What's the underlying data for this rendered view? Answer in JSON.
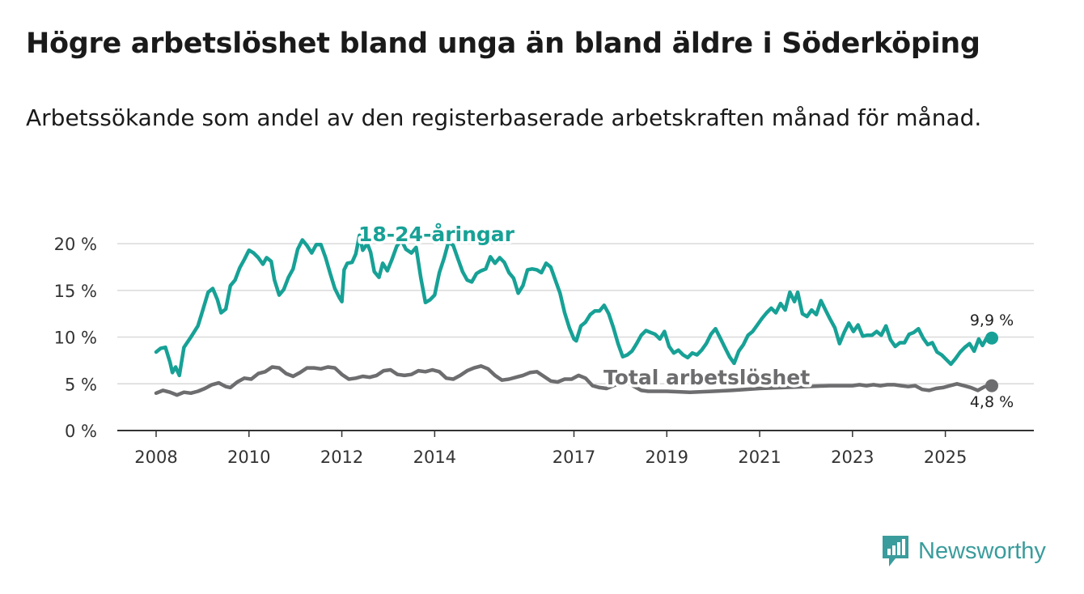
{
  "header": {
    "title": "Högre arbetslöshet bland unga än bland äldre i Söderköping",
    "subtitle": "Arbetssökande som andel av den registerbaserade arbetskraften månad för månad."
  },
  "brand": {
    "name": "Newsworthy",
    "color": "#3a9c9c"
  },
  "chart_data": {
    "type": "line",
    "title": "Högre arbetslöshet bland unga än bland äldre i Söderköping",
    "subtitle": "Arbetssökande som andel av den registerbaserade arbetskraften månad för månad.",
    "xlabel": "",
    "ylabel": "",
    "x_range": [
      2008,
      2026
    ],
    "ylim": [
      0,
      22
    ],
    "y_ticks": [
      0,
      5,
      10,
      15,
      20
    ],
    "y_tick_labels": [
      "0 %",
      "5 %",
      "10 %",
      "15 %",
      "20 %"
    ],
    "x_ticks": [
      2008,
      2010,
      2012,
      2014,
      2017,
      2019,
      2021,
      2023,
      2025
    ],
    "grid": true,
    "series": [
      {
        "name": "18-24-åringar",
        "color": "#17a196",
        "end_label": "9,9 %",
        "points": [
          [
            2008.0,
            8.4
          ],
          [
            2008.1,
            8.8
          ],
          [
            2008.2,
            8.9
          ],
          [
            2008.3,
            7.3
          ],
          [
            2008.35,
            6.2
          ],
          [
            2008.42,
            6.8
          ],
          [
            2008.5,
            5.9
          ],
          [
            2008.6,
            8.9
          ],
          [
            2008.75,
            10.0
          ],
          [
            2008.9,
            11.2
          ],
          [
            2009.0,
            12.8
          ],
          [
            2009.12,
            14.8
          ],
          [
            2009.22,
            15.2
          ],
          [
            2009.32,
            14.0
          ],
          [
            2009.4,
            12.6
          ],
          [
            2009.5,
            13.0
          ],
          [
            2009.6,
            15.5
          ],
          [
            2009.7,
            16.1
          ],
          [
            2009.8,
            17.4
          ],
          [
            2009.9,
            18.3
          ],
          [
            2010.0,
            19.3
          ],
          [
            2010.1,
            19.0
          ],
          [
            2010.2,
            18.5
          ],
          [
            2010.3,
            17.8
          ],
          [
            2010.38,
            18.5
          ],
          [
            2010.48,
            18.1
          ],
          [
            2010.55,
            16.1
          ],
          [
            2010.65,
            14.5
          ],
          [
            2010.75,
            15.1
          ],
          [
            2010.85,
            16.4
          ],
          [
            2010.95,
            17.3
          ],
          [
            2011.05,
            19.4
          ],
          [
            2011.15,
            20.4
          ],
          [
            2011.25,
            19.8
          ],
          [
            2011.35,
            19.0
          ],
          [
            2011.45,
            19.9
          ],
          [
            2011.55,
            19.9
          ],
          [
            2011.65,
            18.5
          ],
          [
            2011.75,
            16.8
          ],
          [
            2011.85,
            15.2
          ],
          [
            2011.95,
            14.2
          ],
          [
            2012.0,
            13.8
          ],
          [
            2012.05,
            17.2
          ],
          [
            2012.12,
            17.9
          ],
          [
            2012.22,
            18.0
          ],
          [
            2012.3,
            18.9
          ],
          [
            2012.38,
            20.9
          ],
          [
            2012.45,
            19.3
          ],
          [
            2012.55,
            20.0
          ],
          [
            2012.62,
            19.1
          ],
          [
            2012.7,
            17.0
          ],
          [
            2012.8,
            16.4
          ],
          [
            2012.88,
            17.9
          ],
          [
            2012.98,
            17.1
          ],
          [
            2013.08,
            18.3
          ],
          [
            2013.18,
            19.7
          ],
          [
            2013.28,
            20.4
          ],
          [
            2013.38,
            19.4
          ],
          [
            2013.5,
            19.0
          ],
          [
            2013.6,
            19.6
          ],
          [
            2013.7,
            16.4
          ],
          [
            2013.8,
            13.7
          ],
          [
            2013.9,
            14.0
          ],
          [
            2014.0,
            14.5
          ],
          [
            2014.1,
            16.9
          ],
          [
            2014.2,
            18.4
          ],
          [
            2014.3,
            20.2
          ],
          [
            2014.4,
            19.8
          ],
          [
            2014.5,
            18.4
          ],
          [
            2014.6,
            17.0
          ],
          [
            2014.7,
            16.1
          ],
          [
            2014.8,
            15.9
          ],
          [
            2014.9,
            16.8
          ],
          [
            2015.0,
            17.1
          ],
          [
            2015.1,
            17.3
          ],
          [
            2015.2,
            18.6
          ],
          [
            2015.3,
            17.9
          ],
          [
            2015.4,
            18.5
          ],
          [
            2015.5,
            18.0
          ],
          [
            2015.6,
            16.9
          ],
          [
            2015.7,
            16.3
          ],
          [
            2015.8,
            14.7
          ],
          [
            2015.9,
            15.5
          ],
          [
            2016.0,
            17.2
          ],
          [
            2016.1,
            17.3
          ],
          [
            2016.2,
            17.2
          ],
          [
            2016.3,
            16.9
          ],
          [
            2016.4,
            17.9
          ],
          [
            2016.5,
            17.5
          ],
          [
            2016.6,
            16.1
          ],
          [
            2016.7,
            14.7
          ],
          [
            2016.8,
            12.6
          ],
          [
            2016.9,
            11.0
          ],
          [
            2017.0,
            9.8
          ],
          [
            2017.05,
            9.6
          ],
          [
            2017.15,
            11.2
          ],
          [
            2017.25,
            11.6
          ],
          [
            2017.35,
            12.4
          ],
          [
            2017.45,
            12.8
          ],
          [
            2017.55,
            12.8
          ],
          [
            2017.65,
            13.4
          ],
          [
            2017.75,
            12.5
          ],
          [
            2017.85,
            11.0
          ],
          [
            2017.95,
            9.3
          ],
          [
            2018.05,
            7.9
          ],
          [
            2018.15,
            8.1
          ],
          [
            2018.25,
            8.5
          ],
          [
            2018.35,
            9.3
          ],
          [
            2018.45,
            10.2
          ],
          [
            2018.55,
            10.7
          ],
          [
            2018.65,
            10.5
          ],
          [
            2018.75,
            10.3
          ],
          [
            2018.85,
            9.8
          ],
          [
            2018.95,
            10.6
          ],
          [
            2019.05,
            9.0
          ],
          [
            2019.15,
            8.3
          ],
          [
            2019.25,
            8.6
          ],
          [
            2019.35,
            8.1
          ],
          [
            2019.45,
            7.8
          ],
          [
            2019.55,
            8.3
          ],
          [
            2019.65,
            8.1
          ],
          [
            2019.75,
            8.6
          ],
          [
            2019.85,
            9.3
          ],
          [
            2019.95,
            10.3
          ],
          [
            2020.05,
            10.9
          ],
          [
            2020.15,
            9.9
          ],
          [
            2020.25,
            8.9
          ],
          [
            2020.35,
            7.9
          ],
          [
            2020.45,
            7.2
          ],
          [
            2020.55,
            8.5
          ],
          [
            2020.65,
            9.2
          ],
          [
            2020.75,
            10.2
          ],
          [
            2020.85,
            10.6
          ],
          [
            2020.95,
            11.3
          ],
          [
            2021.05,
            12.0
          ],
          [
            2021.15,
            12.6
          ],
          [
            2021.25,
            13.1
          ],
          [
            2021.35,
            12.6
          ],
          [
            2021.45,
            13.6
          ],
          [
            2021.55,
            12.9
          ],
          [
            2021.65,
            14.8
          ],
          [
            2021.75,
            13.8
          ],
          [
            2021.82,
            14.8
          ],
          [
            2021.92,
            12.5
          ],
          [
            2022.02,
            12.2
          ],
          [
            2022.12,
            12.9
          ],
          [
            2022.22,
            12.4
          ],
          [
            2022.32,
            13.9
          ],
          [
            2022.42,
            12.9
          ],
          [
            2022.52,
            11.9
          ],
          [
            2022.62,
            11.0
          ],
          [
            2022.72,
            9.3
          ],
          [
            2022.82,
            10.5
          ],
          [
            2022.92,
            11.5
          ],
          [
            2023.02,
            10.6
          ],
          [
            2023.12,
            11.3
          ],
          [
            2023.22,
            10.1
          ],
          [
            2023.32,
            10.2
          ],
          [
            2023.42,
            10.2
          ],
          [
            2023.52,
            10.6
          ],
          [
            2023.62,
            10.2
          ],
          [
            2023.72,
            11.2
          ],
          [
            2023.82,
            9.7
          ],
          [
            2023.92,
            9.0
          ],
          [
            2024.02,
            9.4
          ],
          [
            2024.12,
            9.4
          ],
          [
            2024.22,
            10.3
          ],
          [
            2024.32,
            10.5
          ],
          [
            2024.42,
            10.9
          ],
          [
            2024.52,
            9.9
          ],
          [
            2024.62,
            9.2
          ],
          [
            2024.72,
            9.4
          ],
          [
            2024.82,
            8.4
          ],
          [
            2024.92,
            8.1
          ],
          [
            2025.02,
            7.6
          ],
          [
            2025.12,
            7.1
          ],
          [
            2025.22,
            7.7
          ],
          [
            2025.32,
            8.4
          ],
          [
            2025.42,
            8.9
          ],
          [
            2025.52,
            9.3
          ],
          [
            2025.62,
            8.5
          ],
          [
            2025.72,
            9.8
          ],
          [
            2025.8,
            9.1
          ],
          [
            2025.9,
            10.0
          ],
          [
            2026.0,
            9.9
          ]
        ]
      },
      {
        "name": "Total arbetslöshet",
        "color": "#6d6c6e",
        "end_label": "4,8 %",
        "points": [
          [
            2008.0,
            4.0
          ],
          [
            2008.15,
            4.3
          ],
          [
            2008.3,
            4.1
          ],
          [
            2008.45,
            3.8
          ],
          [
            2008.6,
            4.1
          ],
          [
            2008.75,
            4.0
          ],
          [
            2008.9,
            4.2
          ],
          [
            2009.05,
            4.5
          ],
          [
            2009.2,
            4.9
          ],
          [
            2009.35,
            5.1
          ],
          [
            2009.5,
            4.7
          ],
          [
            2009.6,
            4.6
          ],
          [
            2009.75,
            5.2
          ],
          [
            2009.9,
            5.6
          ],
          [
            2010.05,
            5.5
          ],
          [
            2010.2,
            6.1
          ],
          [
            2010.35,
            6.3
          ],
          [
            2010.5,
            6.8
          ],
          [
            2010.65,
            6.7
          ],
          [
            2010.8,
            6.1
          ],
          [
            2010.95,
            5.8
          ],
          [
            2011.1,
            6.2
          ],
          [
            2011.25,
            6.7
          ],
          [
            2011.4,
            6.7
          ],
          [
            2011.55,
            6.6
          ],
          [
            2011.7,
            6.8
          ],
          [
            2011.85,
            6.7
          ],
          [
            2012.0,
            6.0
          ],
          [
            2012.15,
            5.5
          ],
          [
            2012.3,
            5.6
          ],
          [
            2012.45,
            5.8
          ],
          [
            2012.6,
            5.7
          ],
          [
            2012.75,
            5.9
          ],
          [
            2012.9,
            6.4
          ],
          [
            2013.05,
            6.5
          ],
          [
            2013.2,
            6.0
          ],
          [
            2013.35,
            5.9
          ],
          [
            2013.5,
            6.0
          ],
          [
            2013.65,
            6.4
          ],
          [
            2013.8,
            6.3
          ],
          [
            2013.95,
            6.5
          ],
          [
            2014.1,
            6.3
          ],
          [
            2014.25,
            5.6
          ],
          [
            2014.4,
            5.5
          ],
          [
            2014.55,
            5.9
          ],
          [
            2014.7,
            6.4
          ],
          [
            2014.85,
            6.7
          ],
          [
            2015.0,
            6.9
          ],
          [
            2015.15,
            6.6
          ],
          [
            2015.3,
            5.9
          ],
          [
            2015.45,
            5.4
          ],
          [
            2015.6,
            5.5
          ],
          [
            2015.75,
            5.7
          ],
          [
            2015.9,
            5.9
          ],
          [
            2016.05,
            6.2
          ],
          [
            2016.2,
            6.3
          ],
          [
            2016.35,
            5.8
          ],
          [
            2016.5,
            5.3
          ],
          [
            2016.65,
            5.2
          ],
          [
            2016.8,
            5.5
          ],
          [
            2016.95,
            5.5
          ],
          [
            2017.1,
            5.9
          ],
          [
            2017.25,
            5.6
          ],
          [
            2017.4,
            4.8
          ],
          [
            2017.55,
            4.6
          ],
          [
            2017.7,
            4.5
          ],
          [
            2017.85,
            4.8
          ],
          [
            2018.0,
            5.1
          ],
          [
            2018.15,
            5.2
          ],
          [
            2018.3,
            4.7
          ],
          [
            2018.45,
            4.3
          ],
          [
            2018.6,
            4.2
          ],
          [
            2019.0,
            4.2
          ],
          [
            2019.5,
            4.1
          ],
          [
            2020.0,
            4.2
          ],
          [
            2020.4,
            4.3
          ],
          [
            2021.0,
            4.5
          ],
          [
            2021.5,
            4.6
          ],
          [
            2022.0,
            4.7
          ],
          [
            2022.5,
            4.8
          ],
          [
            2023.0,
            4.8
          ],
          [
            2023.15,
            4.9
          ],
          [
            2023.3,
            4.8
          ],
          [
            2023.45,
            4.9
          ],
          [
            2023.6,
            4.8
          ],
          [
            2023.75,
            4.9
          ],
          [
            2023.9,
            4.9
          ],
          [
            2024.05,
            4.8
          ],
          [
            2024.2,
            4.7
          ],
          [
            2024.35,
            4.8
          ],
          [
            2024.5,
            4.4
          ],
          [
            2024.65,
            4.3
          ],
          [
            2024.8,
            4.5
          ],
          [
            2024.95,
            4.6
          ],
          [
            2025.1,
            4.8
          ],
          [
            2025.25,
            5.0
          ],
          [
            2025.4,
            4.8
          ],
          [
            2025.55,
            4.6
          ],
          [
            2025.7,
            4.3
          ],
          [
            2025.85,
            4.7
          ],
          [
            2026.0,
            4.8
          ]
        ]
      }
    ]
  }
}
